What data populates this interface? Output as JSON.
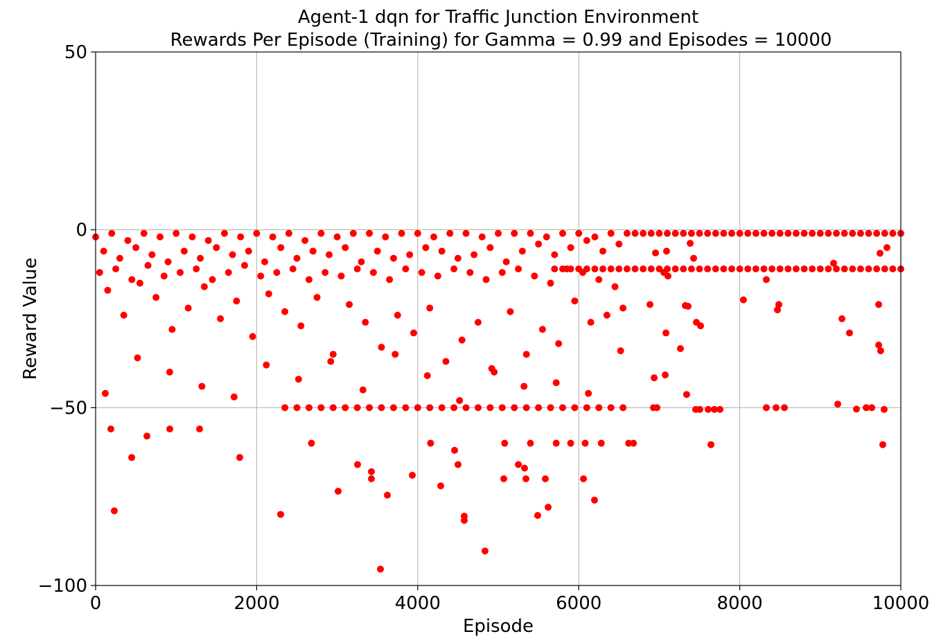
{
  "chart_data": {
    "type": "scatter",
    "title": "Agent-1 dqn for Traffic Junction Environment",
    "subtitle": "Rewards Per Episode (Training) for Gamma = 0.99 and Episodes = 10000",
    "x_label": "Episode",
    "y_label": "Reward Value",
    "xlim": [
      0,
      10000
    ],
    "ylim": [
      -100,
      50
    ],
    "xticks": [
      0,
      2000,
      4000,
      6000,
      8000,
      10000
    ],
    "yticks": [
      {
        "value": -100,
        "label": "−100"
      },
      {
        "value": -50,
        "label": "−50"
      },
      0,
      50
    ],
    "grid": true,
    "series": [
      {
        "color": "#ff0000",
        "x": [
          0,
          200,
          400,
          600,
          800,
          1000,
          1200,
          1400,
          1600,
          1800,
          2000,
          2200,
          2400,
          2600,
          2800,
          3000,
          3200,
          3400,
          3600,
          3800,
          4000,
          4200,
          4400,
          4600,
          4800,
          5000,
          5200,
          5400,
          5600,
          5800,
          6000,
          6200,
          6400
        ],
        "values": [
          -2,
          -1,
          -3,
          -1,
          -2,
          -1,
          -2,
          -3,
          -1,
          -2,
          -1,
          -2,
          -1,
          -3,
          -1,
          -2,
          -1,
          -1,
          -2,
          -1,
          -1,
          -2,
          -1,
          -1,
          -2,
          -1,
          -1,
          -1,
          -2,
          -1,
          -1,
          -2,
          -1
        ]
      },
      {
        "color": "#ff0000",
        "x": [
          100,
          300,
          500,
          700,
          900,
          1100,
          1300,
          1500,
          1700,
          1900,
          2100,
          2300,
          2500,
          2700,
          2900,
          3100,
          3300,
          3500,
          3700,
          3900,
          4100,
          4300,
          4500,
          4700,
          4900,
          5100,
          5300,
          5500,
          5700,
          5900,
          6100,
          6300,
          6500
        ],
        "values": [
          -6,
          -8,
          -5,
          -7,
          -9,
          -6,
          -8,
          -5,
          -7,
          -6,
          -9,
          -5,
          -8,
          -6,
          -7,
          -5,
          -9,
          -6,
          -8,
          -7,
          -5,
          -6,
          -8,
          -7,
          -5,
          -9,
          -6,
          -4,
          -7,
          -5,
          -3,
          -6,
          -4
        ]
      },
      {
        "color": "#ff0000",
        "x": [
          50,
          250,
          450,
          650,
          850,
          1050,
          1250,
          1450,
          1650,
          1850,
          2050,
          2250,
          2450,
          2650,
          2850,
          3050,
          3250,
          3450,
          3650,
          3850,
          4050,
          4250,
          4450,
          4650,
          4850,
          5050,
          5250,
          5450,
          5650,
          5850,
          6050,
          6250,
          6450
        ],
        "values": [
          -12,
          -11,
          -14,
          -10,
          -13,
          -12,
          -11,
          -14,
          -12,
          -10,
          -13,
          -12,
          -11,
          -14,
          -12,
          -13,
          -11,
          -12,
          -14,
          -11,
          -12,
          -13,
          -11,
          -12,
          -14,
          -12,
          -11,
          -13,
          -15,
          -11,
          -12,
          -14,
          -16
        ]
      },
      {
        "color": "#ff0000",
        "x": [
          150,
          350,
          550,
          750,
          950,
          1150,
          1350,
          1550,
          1750,
          1950,
          2150,
          2350,
          2550,
          2750,
          2950,
          3150,
          3350,
          3550,
          3750,
          3950,
          4150,
          4350,
          4550,
          4750,
          4950,
          5150,
          5350,
          5550,
          5750,
          5950,
          6150,
          6350,
          6550
        ],
        "values": [
          -17,
          -24,
          -15,
          -19,
          -28,
          -22,
          -16,
          -25,
          -20,
          -30,
          -18,
          -23,
          -27,
          -19,
          -35,
          -21,
          -26,
          -33,
          -24,
          -29,
          -22,
          -37,
          -31,
          -26,
          -40,
          -23,
          -35,
          -28,
          -32,
          -20,
          -26,
          -24,
          -22
        ]
      },
      {
        "color": "#ff0000",
        "x": [
          2350,
          2500,
          2650,
          2800,
          2950,
          3100,
          3250,
          3400,
          3550,
          3700,
          3850,
          4000,
          4150,
          4300,
          4450,
          4600,
          4750,
          4900,
          5050,
          5200,
          5350,
          5500,
          5650,
          5800,
          5950,
          6100,
          6250,
          6400,
          6550
        ],
        "values": [
          -50,
          -50,
          -50,
          -50,
          -50,
          -50,
          -50,
          -50,
          -50,
          -50,
          -50,
          -50,
          -50,
          -50,
          -50,
          -50,
          -50,
          -50,
          -50,
          -50,
          -50,
          -50,
          -50,
          -50,
          -50,
          -50,
          -50,
          -50,
          -50
        ]
      },
      {
        "color": "#ff0000",
        "x": [
          120,
          520,
          920,
          1320,
          1720,
          2120,
          2520,
          2920,
          3320,
          3720,
          4120,
          4520,
          4920,
          5320,
          5720,
          6120,
          6520
        ],
        "values": [
          -46,
          -36,
          -40,
          -44,
          -47,
          -38,
          -42,
          -37,
          -45,
          -35,
          -41,
          -48,
          -39,
          -44,
          -43,
          -46,
          -34
        ]
      },
      {
        "color": "#ff0000",
        "x": [
          232,
          189,
          448,
          637,
          921,
          1291,
          1790,
          2298,
          3012,
          3253,
          3425,
          3425,
          3623,
          3537,
          3933,
          4286,
          4458,
          4501,
          4578,
          4578,
          4836,
          5069,
          5250,
          5327,
          5344,
          5490,
          5620,
          5585,
          6059,
          6196,
          2680,
          4160,
          5080,
          5400,
          5720,
          5900,
          6080,
          6280,
          6620,
          6680
        ],
        "values": [
          -79,
          -56,
          -64,
          -58,
          -56,
          -56,
          -64,
          -80,
          -73.5,
          -66,
          -68,
          -70,
          -74.6,
          -95.4,
          -69,
          -72,
          -62,
          -66,
          -80.5,
          -81.7,
          -90.3,
          -70,
          -66,
          -67,
          -70,
          -80.3,
          -78,
          -70,
          -70,
          -76,
          -60,
          -60,
          -60,
          -60,
          -60,
          -60,
          -60,
          -60,
          -60,
          -60
        ]
      },
      {
        "color": "#ff0000",
        "x": [
          8046,
          8330,
          8468,
          8485,
          8330,
          8451,
          8554,
          9217,
          9269,
          9363,
          9449,
          9570,
          9639,
          9725,
          9750,
          9793,
          9725,
          9828,
          9742,
          9165,
          9776,
          6885,
          6937,
          6928,
          6971,
          7074,
          7083,
          7263,
          7323,
          7358,
          7340,
          7452,
          7504,
          7607,
          7642,
          7685,
          7754,
          7461,
          7513,
          7384,
          7427,
          7091,
          6954,
          7108,
          7057
        ],
        "values": [
          -19.7,
          -14,
          -22.5,
          -21,
          -50,
          -50,
          -50,
          -49,
          -25,
          -29,
          -50.4,
          -50,
          -50,
          -32.4,
          -34,
          -50.5,
          -21,
          -5,
          -6.6,
          -9.4,
          -60.4,
          -21,
          -41.6,
          -50,
          -50,
          -40.8,
          -29,
          -33.4,
          -21.3,
          -21.5,
          -46.3,
          -50.5,
          -50.5,
          -50.5,
          -60.4,
          -50.5,
          -50.5,
          -26,
          -27,
          -3.8,
          -8,
          -6,
          -6.5,
          -13,
          -12
        ]
      },
      {
        "color": "#ff0000",
        "x": [
          6600,
          6700,
          6800,
          6900,
          7000,
          7100,
          7200,
          7300,
          7400,
          7500,
          7600,
          7700,
          7800,
          7900,
          8000,
          8100,
          8200,
          8300,
          8400,
          8500,
          8600,
          8700,
          8800,
          8900,
          9000,
          9100,
          9200,
          9300,
          9400,
          9500,
          9600,
          9700,
          9800,
          9900,
          10000
        ],
        "values": [
          -1,
          -1,
          -1,
          -1,
          -1,
          -1,
          -1,
          -1,
          -1,
          -1,
          -1,
          -1,
          -1,
          -1,
          -1,
          -1,
          -1,
          -1,
          -1,
          -1,
          -1,
          -1,
          -1,
          -1,
          -1,
          -1,
          -1,
          -1,
          -1,
          -1,
          -1,
          -1,
          -1,
          -1,
          -1
        ]
      },
      {
        "color": "#ff0000",
        "x": [
          5700,
          5800,
          5900,
          6000,
          6100,
          6200,
          6300,
          6400,
          6500,
          6600,
          6700,
          6800,
          6900,
          7000,
          7100,
          7200,
          7300,
          7400,
          7500,
          7600,
          7700,
          7800,
          7900,
          8000,
          8100,
          8200,
          8300,
          8400,
          8500,
          8600,
          8700,
          8800,
          8900,
          9000,
          9100,
          9200,
          9300,
          9400,
          9500,
          9600,
          9700,
          9800,
          9900,
          10000
        ],
        "values": [
          -11,
          -11,
          -11,
          -11,
          -11,
          -11,
          -11,
          -11,
          -11,
          -11,
          -11,
          -11,
          -11,
          -11,
          -11,
          -11,
          -11,
          -11,
          -11,
          -11,
          -11,
          -11,
          -11,
          -11,
          -11,
          -11,
          -11,
          -11,
          -11,
          -11,
          -11,
          -11,
          -11,
          -11,
          -11,
          -11,
          -11,
          -11,
          -11,
          -11,
          -11,
          -11,
          -11,
          -11
        ]
      }
    ]
  }
}
